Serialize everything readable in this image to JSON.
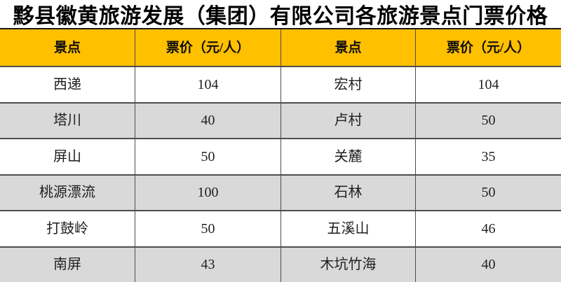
{
  "title": "黟县徽黄旅游发展（集团）有限公司各旅游景点门票价格",
  "table": {
    "headers": [
      "景点",
      "票价（元/人）",
      "景点",
      "票价（元/人）"
    ],
    "rows": [
      [
        "西递",
        "104",
        "宏村",
        "104"
      ],
      [
        "塔川",
        "40",
        "卢村",
        "50"
      ],
      [
        "屏山",
        "50",
        "关麓",
        "35"
      ],
      [
        "桃源漂流",
        "100",
        "石林",
        "50"
      ],
      [
        "打鼓岭",
        "50",
        "五溪山",
        "46"
      ],
      [
        "南屏",
        "43",
        "木坑竹海",
        "40"
      ]
    ]
  },
  "colors": {
    "header_bg": "#FFC000",
    "row_bg": "#FFFFFF",
    "row_alt_bg": "#D9D9D9",
    "border": "#4d4d4d",
    "top_border": "#1a1a1a",
    "text": "#1f1f1f"
  }
}
